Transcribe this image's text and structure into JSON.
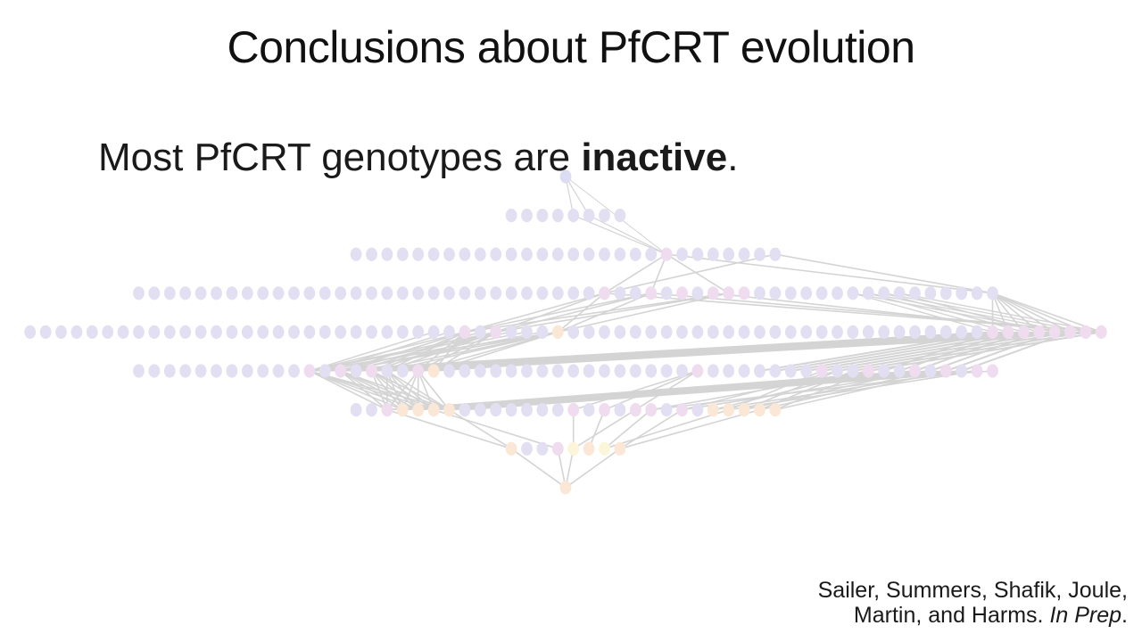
{
  "slide": {
    "title": "Conclusions about PfCRT evolution",
    "bullet_pre": "Most PfCRT genotypes are ",
    "bullet_bold": "inactive",
    "bullet_post": ".",
    "citation_line1": "Sailer, Summers, Shafik, Joule,",
    "citation_line2_pre": "Martin, and Harms. ",
    "citation_line2_italic": "In Prep",
    "citation_line2_post": "."
  },
  "network": {
    "level_counts": [
      1,
      8,
      28,
      56,
      70,
      56,
      28,
      8,
      1
    ],
    "colors": {
      "inactive": "#e3dff2",
      "pink": "#f0dcef",
      "peach": "#fbe7d6",
      "yellow": "#fbf6d9",
      "edge": "#d4d4d4"
    }
  }
}
